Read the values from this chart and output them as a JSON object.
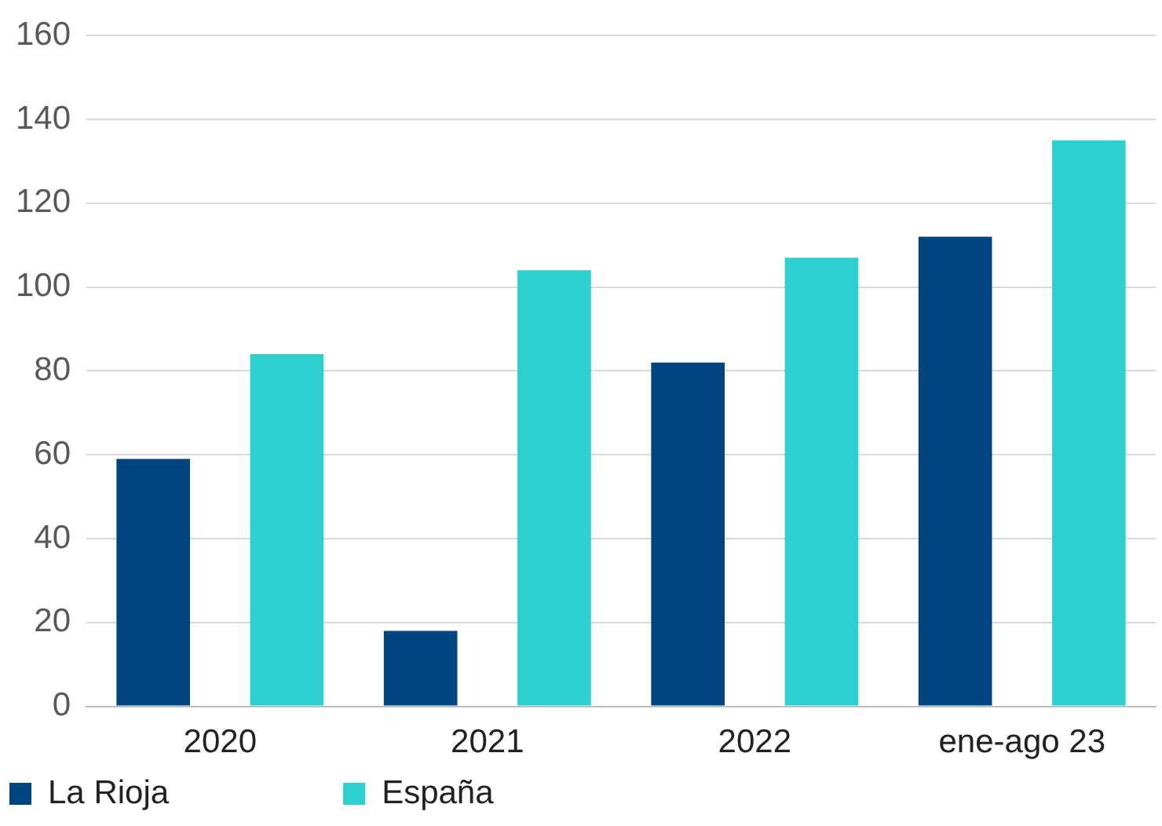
{
  "chart_data": {
    "type": "bar",
    "categories": [
      "2020",
      "2021",
      "2022",
      "ene-ago 23"
    ],
    "series": [
      {
        "name": "La Rioja",
        "color": "#004580",
        "values": [
          59,
          18,
          82,
          112
        ]
      },
      {
        "name": "España",
        "color": "#2ecfcf",
        "values": [
          84,
          104,
          107,
          135
        ]
      }
    ],
    "ylim": [
      0,
      160
    ],
    "yticks": [
      0,
      20,
      40,
      60,
      80,
      100,
      120,
      140,
      160
    ],
    "grid": "y",
    "legend": "bottom"
  }
}
